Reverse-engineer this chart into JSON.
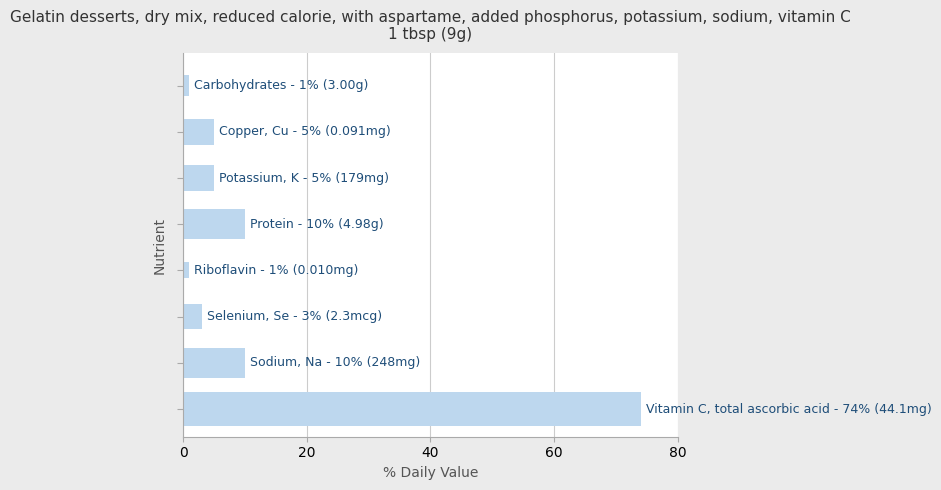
{
  "title": "Gelatin desserts, dry mix, reduced calorie, with aspartame, added phosphorus, potassium, sodium, vitamin C\n1 tbsp (9g)",
  "xlabel": "% Daily Value",
  "ylabel": "Nutrient",
  "background_color": "#ebebeb",
  "plot_background": "#ffffff",
  "bar_color_normal": "#bdd7ee",
  "bar_color_vitc": "#bdd7ee",
  "label_color": "#1f4e79",
  "nutrients": [
    "Carbohydrates - 1% (3.00g)",
    "Copper, Cu - 5% (0.091mg)",
    "Potassium, K - 5% (179mg)",
    "Protein - 10% (4.98g)",
    "Riboflavin - 1% (0.010mg)",
    "Selenium, Se - 3% (2.3mcg)",
    "Sodium, Na - 10% (248mg)",
    "Vitamin C, total ascorbic acid - 74% (44.1mg)"
  ],
  "values": [
    1,
    5,
    5,
    10,
    1,
    3,
    10,
    74
  ],
  "xlim": [
    0,
    80
  ],
  "title_fontsize": 11,
  "axis_label_fontsize": 10,
  "tick_fontsize": 10,
  "bar_label_fontsize": 9,
  "bar_heights": [
    0.45,
    0.55,
    0.55,
    0.65,
    0.35,
    0.55,
    0.65,
    0.75
  ]
}
